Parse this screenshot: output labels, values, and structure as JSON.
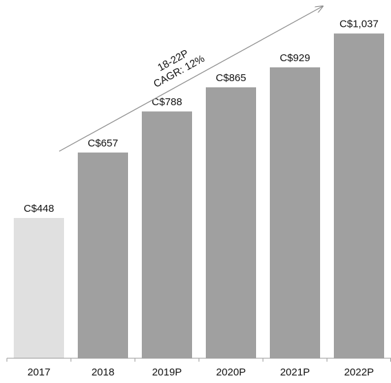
{
  "chart_data": {
    "type": "bar",
    "categories": [
      "2017",
      "2018",
      "2019P",
      "2020P",
      "2021P",
      "2022P"
    ],
    "values": [
      448,
      657,
      788,
      865,
      929,
      1037
    ],
    "value_labels": [
      "C$448",
      "C$657",
      "C$788",
      "C$865",
      "C$929",
      "C$1,037"
    ],
    "ylim": [
      0,
      1100
    ],
    "grid": false,
    "legend": "none",
    "annotation": {
      "line1": "18-22P",
      "line2": "CAGR: 12%"
    },
    "colors": {
      "historical": "#e0e0e0",
      "projected": "#a0a0a0",
      "axis": "#9a9a9a",
      "arrow": "#8c8c8c",
      "text": "#111111"
    },
    "bar_color_keys": [
      "historical",
      "projected",
      "projected",
      "projected",
      "projected",
      "projected"
    ]
  }
}
